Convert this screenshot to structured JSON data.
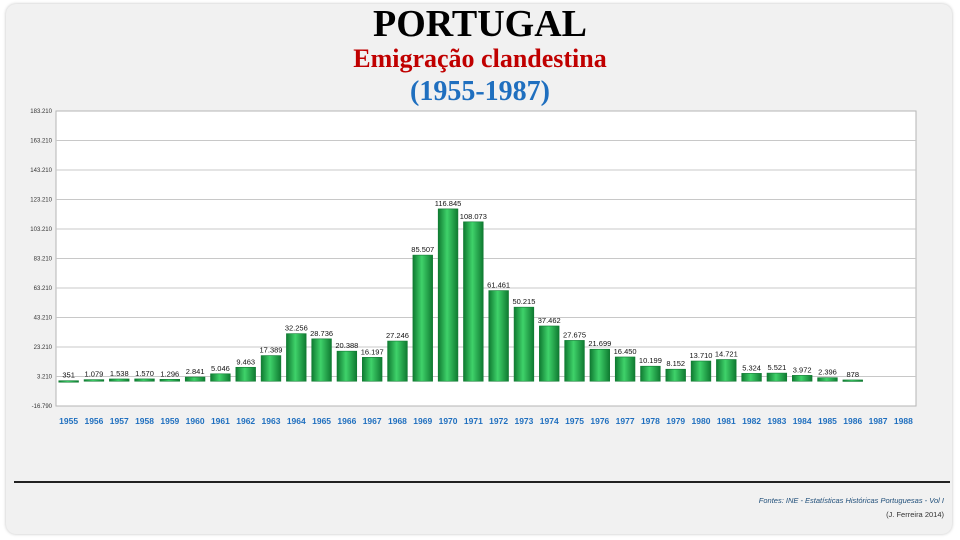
{
  "header": {
    "title": "PORTUGAL",
    "subtitle": "Emigração clandestina",
    "period": "(1955-1987)"
  },
  "footer": {
    "source": "Fontes: INE - Estatísticas Históricas Portuguesas - Vol I",
    "credit": "(J. Ferreira 2014)"
  },
  "colors": {
    "bar_fill": "#22b14c",
    "bar_dark": "#0f7a31",
    "tick_label": "#1f6fbf",
    "title_red": "#c00000"
  },
  "chart_data": {
    "type": "bar",
    "categories": [
      "1955",
      "1956",
      "1957",
      "1958",
      "1959",
      "1960",
      "1961",
      "1962",
      "1963",
      "1964",
      "1965",
      "1966",
      "1967",
      "1968",
      "1969",
      "1970",
      "1971",
      "1972",
      "1973",
      "1974",
      "1975",
      "1976",
      "1977",
      "1978",
      "1979",
      "1980",
      "1981",
      "1982",
      "1983",
      "1984",
      "1985",
      "1986",
      "1987",
      "1988"
    ],
    "values": [
      351,
      1079,
      1538,
      1570,
      1296,
      2841,
      5046,
      9463,
      17389,
      32256,
      28736,
      20388,
      16197,
      27246,
      85507,
      116845,
      108073,
      61461,
      50215,
      37462,
      27675,
      21699,
      16450,
      10199,
      8152,
      13710,
      14721,
      5324,
      5521,
      3972,
      2396,
      878,
      null,
      null
    ],
    "value_labels": [
      "351",
      "1.079",
      "1.538",
      "1.570",
      "1.296",
      "2.841",
      "5.046",
      "9.463",
      "17.389",
      "32.256",
      "28.736",
      "20.388",
      "16.197",
      "27.246",
      "85.507",
      "116.845",
      "108.073",
      "61.461",
      "50.215",
      "37.462",
      "27.675",
      "21.699",
      "16.450",
      "10.199",
      "8.152",
      "13.710",
      "14.721",
      "5.324",
      "5.521",
      "3.972",
      "2.396",
      "878",
      "",
      ""
    ],
    "yticks": [
      -16790,
      3210,
      23210,
      43210,
      63210,
      83210,
      103210,
      123210,
      143210,
      163210,
      183210
    ],
    "ytick_labels": [
      "-16.790",
      "3.210",
      "23.210",
      "43.210",
      "63.210",
      "83.210",
      "103.210",
      "123.210",
      "143.210",
      "163.210",
      "183.210"
    ],
    "ylim": [
      -16790,
      183210
    ],
    "grid": true,
    "legend": "none"
  }
}
